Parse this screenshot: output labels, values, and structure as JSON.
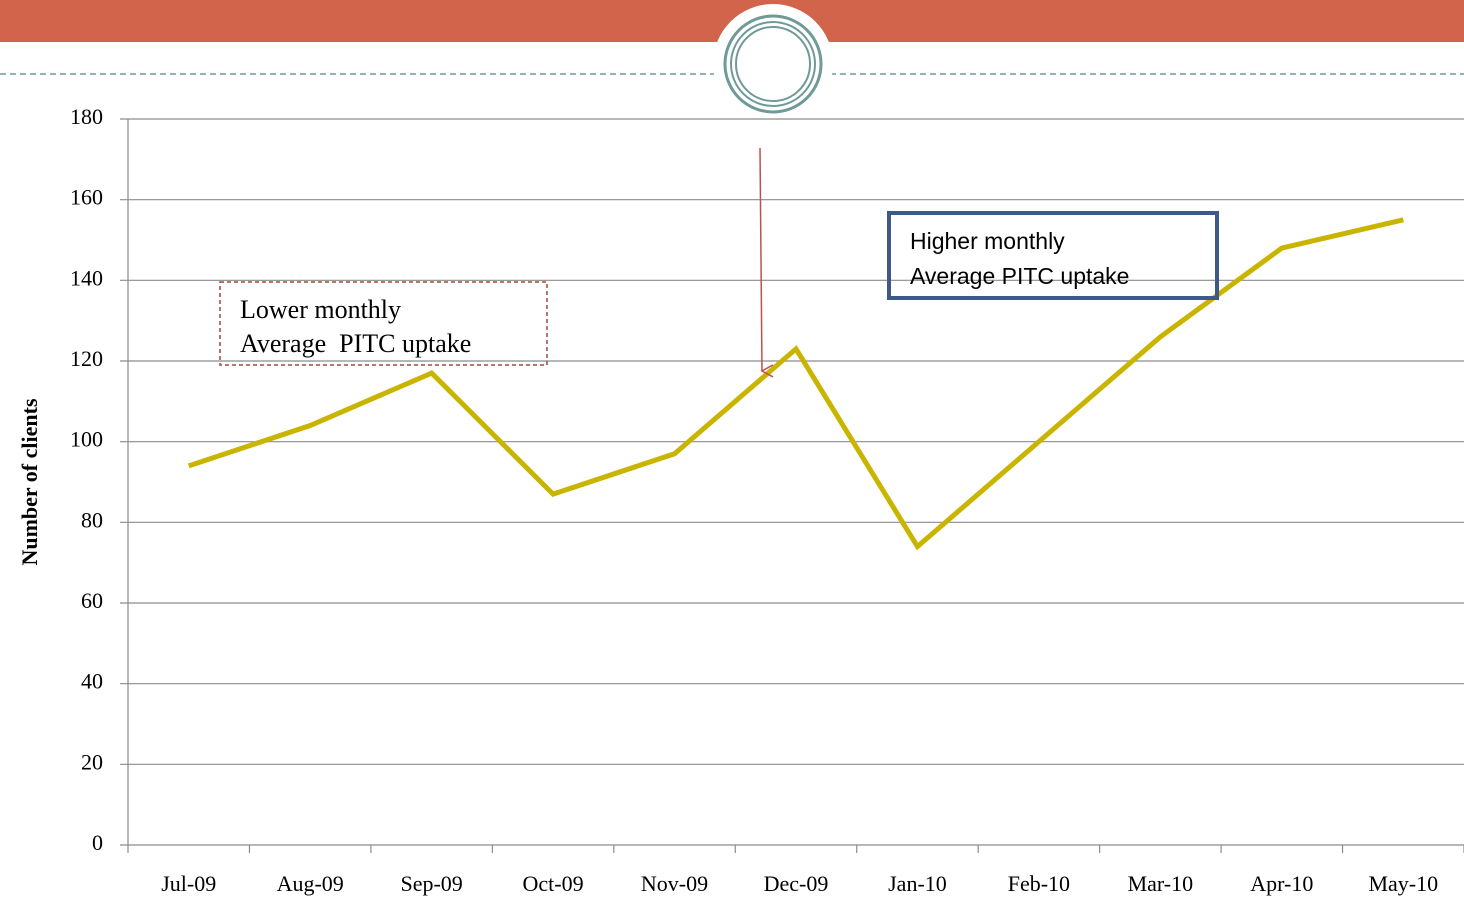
{
  "chart_data": {
    "type": "line",
    "y_label": "Number of clients",
    "categories": [
      "Jul-09",
      "Aug-09",
      "Sep-09",
      "Oct-09",
      "Nov-09",
      "Dec-09",
      "Jan-10",
      "Feb-10",
      "Mar-10",
      "Apr-10",
      "May-10"
    ],
    "series": [
      {
        "color": "#c9b400",
        "values": [
          94,
          104,
          117,
          87,
          97,
          123,
          74,
          100,
          126,
          148,
          155
        ]
      }
    ],
    "ylim": [
      0,
      180
    ],
    "yticks": [
      0,
      20,
      40,
      60,
      80,
      100,
      120,
      140,
      160,
      180
    ],
    "grid": true,
    "annotations": [
      {
        "lines": [
          "Lower monthly",
          "Average  PITC uptake"
        ]
      },
      {
        "lines": [
          "Higher monthly",
          "Average PITC uptake"
        ]
      }
    ]
  }
}
